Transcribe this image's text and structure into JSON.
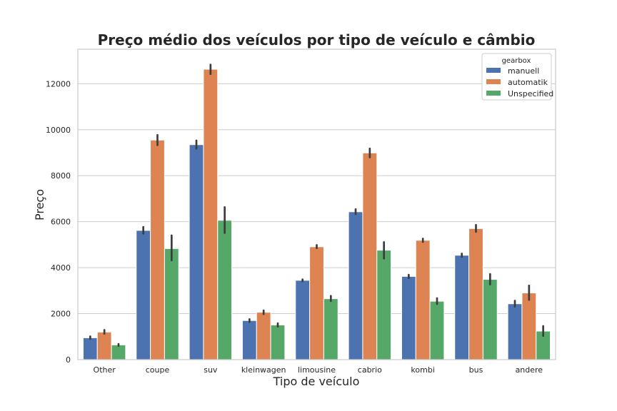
{
  "chart_data": {
    "type": "bar",
    "title": "Preço médio dos veículos por tipo de veículo e câmbio",
    "xlabel": "Tipo de veículo",
    "ylabel": "Preço",
    "ylim": [
      0,
      13500
    ],
    "yticks": [
      0,
      2000,
      4000,
      6000,
      8000,
      10000,
      12000
    ],
    "grid": true,
    "categories": [
      "Other",
      "coupe",
      "suv",
      "kleinwagen",
      "limousine",
      "cabrio",
      "kombi",
      "bus",
      "andere"
    ],
    "legend": {
      "title": "gearbox",
      "placement": "top-right"
    },
    "series": [
      {
        "name": "manuell",
        "color": "#4c72b0",
        "values": [
          950,
          5620,
          9350,
          1700,
          3450,
          6430,
          3620,
          4540,
          2430
        ],
        "err_low": [
          900,
          5480,
          9180,
          1640,
          3410,
          6330,
          3550,
          4470,
          2310
        ],
        "err_high": [
          1010,
          5770,
          9530,
          1760,
          3490,
          6540,
          3690,
          4610,
          2560
        ]
      },
      {
        "name": "automatik",
        "color": "#dd8452",
        "values": [
          1200,
          9550,
          12630,
          2060,
          4910,
          8990,
          5190,
          5700,
          2900
        ],
        "err_low": [
          1130,
          9330,
          12420,
          1980,
          4850,
          8800,
          5120,
          5560,
          2600
        ],
        "err_high": [
          1290,
          9770,
          12830,
          2140,
          4980,
          9180,
          5260,
          5860,
          3220
        ]
      },
      {
        "name": "Unspecified",
        "color": "#55a868",
        "values": [
          640,
          4830,
          6060,
          1510,
          2650,
          4760,
          2540,
          3490,
          1240
        ],
        "err_low": [
          600,
          4320,
          5510,
          1440,
          2550,
          4400,
          2420,
          3270,
          1030
        ],
        "err_high": [
          680,
          5400,
          6630,
          1580,
          2770,
          5110,
          2670,
          3720,
          1460
        ]
      }
    ]
  }
}
